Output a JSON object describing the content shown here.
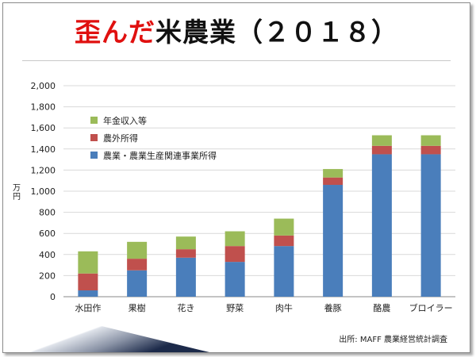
{
  "title": {
    "accent": "歪んだ",
    "rest": "米農業（２０１８）"
  },
  "source": "出所: MAFF 農業経営統計調査",
  "chart_data": {
    "type": "bar",
    "stacked": true,
    "title": "歪んだ米農業（２０１８）",
    "xlabel": "",
    "ylabel": "万円",
    "ylim": [
      0,
      2000
    ],
    "yticks": [
      0,
      200,
      400,
      600,
      800,
      1000,
      1200,
      1400,
      1600,
      1800,
      2000
    ],
    "ytick_labels": [
      "0",
      "200",
      "400",
      "600",
      "800",
      "1,000",
      "1,200",
      "1,400",
      "1,600",
      "1,800",
      "2,000"
    ],
    "grid": true,
    "legend_position": "top-left",
    "categories": [
      "水田作",
      "果樹",
      "花き",
      "野菜",
      "肉牛",
      "養豚",
      "酪農",
      "ブロイラー"
    ],
    "series": [
      {
        "name": "農業・農業生産関連事業所得",
        "color": "#4a7ebb",
        "values": [
          60,
          250,
          370,
          330,
          480,
          1060,
          1350,
          1350
        ]
      },
      {
        "name": "農外所得",
        "color": "#c0504d",
        "values": [
          160,
          110,
          80,
          150,
          100,
          70,
          80,
          80
        ]
      },
      {
        "name": "年金収入等",
        "color": "#9bbb59",
        "values": [
          210,
          160,
          120,
          140,
          160,
          80,
          100,
          100
        ]
      }
    ],
    "legend_order": [
      2,
      1,
      0
    ]
  }
}
